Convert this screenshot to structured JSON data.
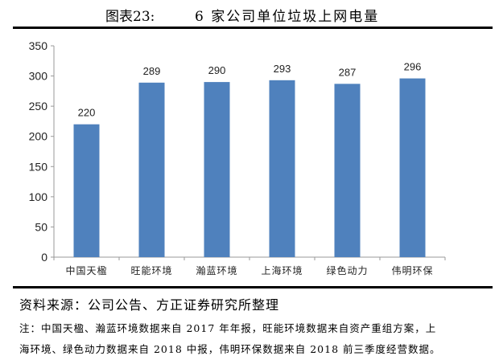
{
  "title": {
    "number": "图表23:",
    "text": "6 家公司单位垃圾上网电量"
  },
  "chart_data": {
    "type": "bar",
    "categories": [
      "中国天楹",
      "旺能环境",
      "瀚蓝环境",
      "上海环境",
      "绿色动力",
      "伟明环保"
    ],
    "values": [
      220,
      289,
      290,
      293,
      287,
      296
    ],
    "ylim": [
      0,
      350
    ],
    "yticks": [
      0,
      50,
      100,
      150,
      200,
      250,
      300,
      350
    ],
    "grid": false,
    "bar_color": "#4F81BD",
    "data_labels": true
  },
  "source": "资料来源：公司公告、方正证券研究所整理",
  "notes": [
    "注：中国天楹、瀚蓝环境数据来自 2017 年年报，旺能环境数据来自资产重组方案，上",
    "海环境、绿色动力数据来自 2018 中报，伟明环保数据来自 2018 前三季度经营数据。"
  ]
}
